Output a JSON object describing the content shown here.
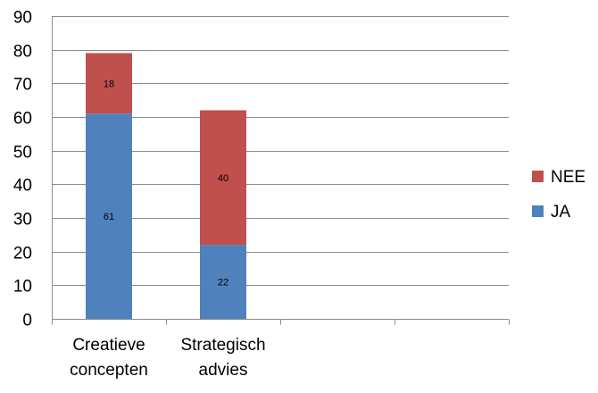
{
  "chart_data": {
    "type": "bar",
    "stacked": true,
    "categories": [
      [
        "Creatieve",
        "concepten"
      ],
      [
        "Strategisch",
        "advies"
      ],
      [],
      []
    ],
    "series": [
      {
        "name": "JA",
        "color": "#4F81BD",
        "values": [
          61,
          22,
          null,
          null
        ]
      },
      {
        "name": "NEE",
        "color": "#C0504D",
        "values": [
          18,
          40,
          null,
          null
        ]
      }
    ],
    "ylim": [
      0,
      90
    ],
    "yticks": [
      0,
      10,
      20,
      30,
      40,
      50,
      60,
      70,
      80,
      90
    ],
    "grid": true,
    "legend_position": "right",
    "legend_order": [
      "NEE",
      "JA"
    ],
    "data_labels": true
  }
}
